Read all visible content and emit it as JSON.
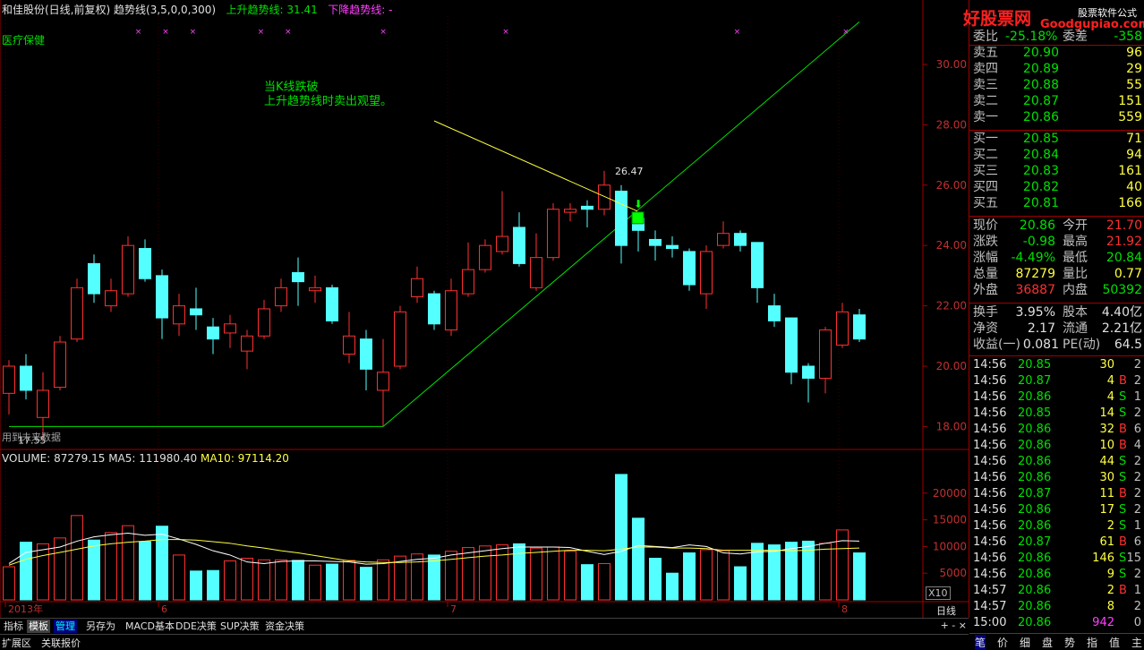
{
  "header": {
    "stock": "和佳股份(日线,前复权)",
    "indicator": "趋势线(3,5,0,0,300)",
    "up_trend_label": "上升趋势线: 31.41",
    "down_trend_label": "下降趋势线: -"
  },
  "sector": "医疗保健",
  "annotation": {
    "line1": "当K线跌破",
    "line2": "上升趋势线时卖出观望。"
  },
  "future_note": "用到未来数据",
  "price_marks": {
    "high_label": "26.47",
    "low_label": "17.55"
  },
  "price_axis": [
    "30.00",
    "28.00",
    "26.00",
    "24.00",
    "22.00",
    "20.00",
    "18.00"
  ],
  "volume_header": {
    "volume": "VOLUME: 87279.15",
    "ma5": "MA5: 111980.40",
    "ma10": "MA10: 97114.20"
  },
  "volume_axis": [
    "20000",
    "15000",
    "10000",
    "5000"
  ],
  "x_axis": [
    "2013年",
    "6",
    "7",
    "8"
  ],
  "x10_label": "X10",
  "period_label": "日线",
  "toolbar": {
    "tabs": [
      "指标",
      "模板",
      "管理",
      "另存为",
      "MACD基本",
      "DDE决策",
      "SUP决策",
      "资金决策"
    ],
    "right_controls": "+ - ×"
  },
  "bottom_bar": {
    "tabs": [
      "扩展区",
      "关联报价"
    ]
  },
  "logo": {
    "main": "好股票网",
    "sub": "Goodgupiao.com",
    "tag": "股票软件公式"
  },
  "quote_panel": {
    "ratio_row": {
      "label": "委比",
      "value": "-25.18%",
      "label2": "委差",
      "value2": "-358"
    },
    "asks": [
      {
        "label": "卖五",
        "price": "20.90",
        "vol": "96"
      },
      {
        "label": "卖四",
        "price": "20.89",
        "vol": "29"
      },
      {
        "label": "卖三",
        "price": "20.88",
        "vol": "55"
      },
      {
        "label": "卖二",
        "price": "20.87",
        "vol": "151"
      },
      {
        "label": "卖一",
        "price": "20.86",
        "vol": "559"
      }
    ],
    "bids": [
      {
        "label": "买一",
        "price": "20.85",
        "vol": "71"
      },
      {
        "label": "买二",
        "price": "20.84",
        "vol": "94"
      },
      {
        "label": "买三",
        "price": "20.83",
        "vol": "161"
      },
      {
        "label": "买四",
        "price": "20.82",
        "vol": "40"
      },
      {
        "label": "买五",
        "price": "20.81",
        "vol": "166"
      }
    ],
    "stats1": [
      {
        "l1": "现价",
        "v1": "20.86",
        "l2": "今开",
        "v2": "21.70"
      },
      {
        "l1": "涨跌",
        "v1": "-0.98",
        "l2": "最高",
        "v2": "21.92"
      },
      {
        "l1": "涨幅",
        "v1": "-4.49%",
        "l2": "最低",
        "v2": "20.84"
      },
      {
        "l1": "总量",
        "v1": "87279",
        "l2": "量比",
        "v2": "0.77"
      },
      {
        "l1": "外盘",
        "v1": "36887",
        "l2": "内盘",
        "v2": "50392"
      }
    ],
    "stats2": [
      {
        "l1": "换手",
        "v1": "3.95%",
        "l2": "股本",
        "v2": "4.40亿"
      },
      {
        "l1": "净资",
        "v1": "2.17",
        "l2": "流通",
        "v2": "2.21亿"
      },
      {
        "l1": "收益(一)",
        "v1": "0.081",
        "l2": "PE(动)",
        "v2": "64.5"
      }
    ],
    "ticks": [
      {
        "t": "14:56",
        "p": "20.85",
        "v": "30",
        "bs": "",
        "n": "2"
      },
      {
        "t": "14:56",
        "p": "20.87",
        "v": "4",
        "bs": "B",
        "n": "2"
      },
      {
        "t": "14:56",
        "p": "20.86",
        "v": "4",
        "bs": "S",
        "n": "1"
      },
      {
        "t": "14:56",
        "p": "20.85",
        "v": "14",
        "bs": "S",
        "n": "2"
      },
      {
        "t": "14:56",
        "p": "20.86",
        "v": "32",
        "bs": "B",
        "n": "6"
      },
      {
        "t": "14:56",
        "p": "20.86",
        "v": "10",
        "bs": "B",
        "n": "4"
      },
      {
        "t": "14:56",
        "p": "20.86",
        "v": "44",
        "bs": "S",
        "n": "2"
      },
      {
        "t": "14:56",
        "p": "20.86",
        "v": "30",
        "bs": "S",
        "n": "2"
      },
      {
        "t": "14:56",
        "p": "20.87",
        "v": "11",
        "bs": "B",
        "n": "2"
      },
      {
        "t": "14:56",
        "p": "20.86",
        "v": "17",
        "bs": "S",
        "n": "2"
      },
      {
        "t": "14:56",
        "p": "20.86",
        "v": "2",
        "bs": "S",
        "n": "1"
      },
      {
        "t": "14:56",
        "p": "20.87",
        "v": "61",
        "bs": "B",
        "n": "6"
      },
      {
        "t": "14:56",
        "p": "20.86",
        "v": "146",
        "bs": "S",
        "n": "15"
      },
      {
        "t": "14:56",
        "p": "20.86",
        "v": "9",
        "bs": "S",
        "n": "2"
      },
      {
        "t": "14:57",
        "p": "20.86",
        "v": "2",
        "bs": "B",
        "n": "1"
      },
      {
        "t": "14:57",
        "p": "20.86",
        "v": "8",
        "bs": "",
        "n": "2"
      },
      {
        "t": "15:00",
        "p": "20.86",
        "v": "942",
        "bs": "",
        "n": "0"
      }
    ],
    "tabs": [
      "笔",
      "价",
      "细",
      "盘",
      "势",
      "指",
      "值",
      "主"
    ]
  },
  "colors": {
    "up": "#ff3030",
    "down": "#54ffff",
    "trend": "#00e000",
    "ma5": "#ffffff",
    "ma10": "#ffff40"
  },
  "chart_data": {
    "type": "candlestick",
    "ylim": [
      17.3,
      31.6
    ],
    "candles": [
      {
        "o": 19.1,
        "c": 20.0,
        "h": 20.2,
        "l": 18.4,
        "up": true
      },
      {
        "o": 20.0,
        "c": 19.2,
        "h": 20.4,
        "l": 18.9,
        "up": false
      },
      {
        "o": 18.3,
        "c": 19.2,
        "h": 19.8,
        "l": 17.55,
        "up": true
      },
      {
        "o": 19.3,
        "c": 20.8,
        "h": 21.0,
        "l": 19.2,
        "up": true
      },
      {
        "o": 20.9,
        "c": 22.6,
        "h": 22.9,
        "l": 20.8,
        "up": true
      },
      {
        "o": 23.4,
        "c": 22.4,
        "h": 23.7,
        "l": 22.1,
        "up": false
      },
      {
        "o": 22.0,
        "c": 22.5,
        "h": 22.9,
        "l": 21.8,
        "up": true
      },
      {
        "o": 22.4,
        "c": 24.0,
        "h": 24.3,
        "l": 22.3,
        "up": true
      },
      {
        "o": 23.9,
        "c": 22.9,
        "h": 24.2,
        "l": 22.8,
        "up": false
      },
      {
        "o": 23.0,
        "c": 21.6,
        "h": 23.2,
        "l": 20.9,
        "up": false
      },
      {
        "o": 21.4,
        "c": 22.0,
        "h": 22.4,
        "l": 21.0,
        "up": true
      },
      {
        "o": 21.9,
        "c": 21.7,
        "h": 22.6,
        "l": 21.2,
        "up": false
      },
      {
        "o": 21.3,
        "c": 20.9,
        "h": 21.6,
        "l": 20.4,
        "up": false
      },
      {
        "o": 21.1,
        "c": 21.4,
        "h": 21.7,
        "l": 20.6,
        "up": true
      },
      {
        "o": 20.5,
        "c": 21.0,
        "h": 21.2,
        "l": 19.9,
        "up": true
      },
      {
        "o": 21.0,
        "c": 21.9,
        "h": 22.2,
        "l": 20.9,
        "up": true
      },
      {
        "o": 22.0,
        "c": 22.6,
        "h": 22.9,
        "l": 21.8,
        "up": true
      },
      {
        "o": 23.1,
        "c": 22.8,
        "h": 23.6,
        "l": 22.0,
        "up": false
      },
      {
        "o": 22.5,
        "c": 22.6,
        "h": 23.0,
        "l": 22.1,
        "up": true
      },
      {
        "o": 22.6,
        "c": 21.5,
        "h": 22.7,
        "l": 21.4,
        "up": false
      },
      {
        "o": 20.4,
        "c": 21.0,
        "h": 21.8,
        "l": 20.1,
        "up": true
      },
      {
        "o": 20.9,
        "c": 19.9,
        "h": 21.2,
        "l": 19.2,
        "up": false
      },
      {
        "o": 19.2,
        "c": 19.8,
        "h": 20.9,
        "l": 18.0,
        "up": true
      },
      {
        "o": 20.0,
        "c": 21.8,
        "h": 22.0,
        "l": 19.9,
        "up": true
      },
      {
        "o": 22.3,
        "c": 22.9,
        "h": 23.3,
        "l": 22.1,
        "up": true
      },
      {
        "o": 22.4,
        "c": 21.4,
        "h": 22.5,
        "l": 21.2,
        "up": false
      },
      {
        "o": 21.2,
        "c": 22.5,
        "h": 22.9,
        "l": 21.0,
        "up": true
      },
      {
        "o": 22.4,
        "c": 23.2,
        "h": 24.1,
        "l": 22.3,
        "up": true
      },
      {
        "o": 23.2,
        "c": 24.0,
        "h": 24.2,
        "l": 23.1,
        "up": true
      },
      {
        "o": 23.8,
        "c": 24.3,
        "h": 25.8,
        "l": 23.7,
        "up": true
      },
      {
        "o": 24.6,
        "c": 23.4,
        "h": 25.1,
        "l": 23.3,
        "up": false
      },
      {
        "o": 22.6,
        "c": 23.6,
        "h": 24.4,
        "l": 22.5,
        "up": true
      },
      {
        "o": 23.6,
        "c": 25.2,
        "h": 25.4,
        "l": 23.5,
        "up": true
      },
      {
        "o": 25.1,
        "c": 25.2,
        "h": 25.4,
        "l": 24.8,
        "up": true
      },
      {
        "o": 25.3,
        "c": 25.2,
        "h": 25.5,
        "l": 24.6,
        "up": false
      },
      {
        "o": 25.2,
        "c": 26.0,
        "h": 26.47,
        "l": 25.0,
        "up": true
      },
      {
        "o": 25.8,
        "c": 24.0,
        "h": 26.0,
        "l": 23.4,
        "up": false
      },
      {
        "o": 24.9,
        "c": 24.5,
        "h": 25.0,
        "l": 23.8,
        "up": false
      },
      {
        "o": 24.2,
        "c": 24.0,
        "h": 24.5,
        "l": 23.5,
        "up": false
      },
      {
        "o": 24.0,
        "c": 23.9,
        "h": 24.3,
        "l": 23.6,
        "up": false
      },
      {
        "o": 23.8,
        "c": 22.7,
        "h": 23.9,
        "l": 22.5,
        "up": false
      },
      {
        "o": 22.4,
        "c": 23.8,
        "h": 24.0,
        "l": 21.9,
        "up": true
      },
      {
        "o": 24.0,
        "c": 24.4,
        "h": 24.8,
        "l": 23.9,
        "up": true
      },
      {
        "o": 24.4,
        "c": 24.0,
        "h": 24.5,
        "l": 23.8,
        "up": false
      },
      {
        "o": 24.1,
        "c": 22.6,
        "h": 24.1,
        "l": 22.1,
        "up": false
      },
      {
        "o": 22.0,
        "c": 21.5,
        "h": 22.4,
        "l": 21.3,
        "up": false
      },
      {
        "o": 21.6,
        "c": 19.8,
        "h": 21.6,
        "l": 19.4,
        "up": false
      },
      {
        "o": 20.0,
        "c": 19.6,
        "h": 20.1,
        "l": 18.8,
        "up": false
      },
      {
        "o": 19.6,
        "c": 21.2,
        "h": 21.3,
        "l": 19.1,
        "up": true
      },
      {
        "o": 20.7,
        "c": 21.8,
        "h": 22.1,
        "l": 20.6,
        "up": true
      },
      {
        "o": 21.7,
        "c": 20.9,
        "h": 21.9,
        "l": 20.8,
        "up": false
      }
    ],
    "volume": {
      "ylim": [
        0,
        25500
      ],
      "values": [
        6200,
        10800,
        10500,
        11600,
        15800,
        11200,
        12600,
        13900,
        10900,
        13800,
        8400,
        5400,
        5500,
        7300,
        7800,
        7500,
        7500,
        7400,
        6500,
        6700,
        7400,
        6100,
        7500,
        8200,
        8600,
        8400,
        9100,
        9800,
        10100,
        10300,
        10500,
        9700,
        9900,
        9100,
        6600,
        6800,
        23500,
        15300,
        7800,
        5000,
        8800,
        9400,
        9200,
        6200,
        10600,
        10300,
        10800,
        11000,
        10600,
        13100,
        8800
      ],
      "ma5": [
        6800,
        8900,
        9400,
        9900,
        11000,
        11800,
        12200,
        12500,
        12100,
        12300,
        11400,
        10400,
        9200,
        8400,
        7100,
        6800,
        7200,
        7300,
        7300,
        7200,
        7100,
        6700,
        6800,
        7200,
        7600,
        7800,
        8400,
        8800,
        9200,
        9600,
        9900,
        9900,
        9900,
        9800,
        9100,
        8500,
        9100,
        10200,
        10000,
        9800,
        10300,
        10000,
        8800,
        8600,
        9000,
        9100,
        9600,
        10000,
        10600,
        11100,
        11000
      ],
      "ma10": [
        6500,
        7600,
        8300,
        8900,
        9500,
        10100,
        10500,
        10800,
        11000,
        11300,
        11300,
        11200,
        10900,
        10600,
        10100,
        9700,
        9200,
        8800,
        8300,
        7800,
        7300,
        7100,
        7000,
        7000,
        7100,
        7300,
        7600,
        7900,
        8200,
        8400,
        8700,
        8900,
        9100,
        9300,
        9300,
        9200,
        9500,
        9900,
        9900,
        9700,
        9700,
        9600,
        9300,
        9300,
        9300,
        9300,
        9200,
        9300,
        9500,
        9600,
        9700
      ]
    },
    "trend_lines": [
      {
        "name": "上升趋势线",
        "points": [
          [
            0,
            18.0
          ],
          [
            22,
            18.0
          ],
          [
            50,
            31.41
          ]
        ]
      }
    ],
    "sell_signal_index": 36,
    "x_labels": [
      {
        "i": 0,
        "label": "2013年"
      },
      {
        "i": 9,
        "label": "6"
      },
      {
        "i": 26,
        "label": "7"
      },
      {
        "i": 49,
        "label": "8"
      }
    ]
  }
}
